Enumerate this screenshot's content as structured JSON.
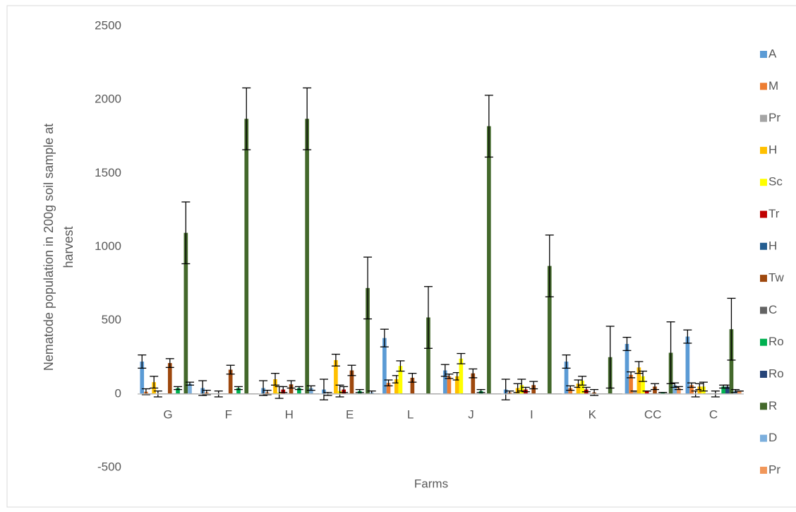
{
  "chart_data": {
    "type": "bar",
    "ylabel": [
      "Nematode population in 200g soil sample at",
      "harvest"
    ],
    "xlabel": "Farms",
    "categories": [
      "G",
      "F",
      "H",
      "E",
      "L",
      "J",
      "I",
      "K",
      "CC",
      "C"
    ],
    "ylim": [
      -500,
      2500
    ],
    "yticks": [
      -500,
      0,
      500,
      1000,
      1500,
      2000,
      2500
    ],
    "grid": false,
    "series": [
      {
        "name": "A",
        "color": "#5b9bd5",
        "values": [
          220,
          40,
          40,
          30,
          380,
          160,
          30,
          220,
          340,
          390
        ],
        "errors": [
          45,
          50,
          50,
          70,
          60,
          40,
          70,
          45,
          45,
          45
        ]
      },
      {
        "name": "M",
        "color": "#ed7d31",
        "values": [
          15,
          10,
          10,
          0,
          75,
          120,
          10,
          40,
          130,
          60
        ],
        "errors": [
          20,
          15,
          15,
          10,
          20,
          15,
          10,
          15,
          20,
          15
        ]
      },
      {
        "name": "Pr",
        "color": "#a5a5a5",
        "values": [
          0,
          0,
          0,
          0,
          0,
          0,
          0,
          0,
          20,
          0
        ],
        "errors": [
          0,
          0,
          0,
          0,
          0,
          0,
          0,
          0,
          0,
          20
        ]
      },
      {
        "name": "H",
        "color": "#ffc000",
        "values": [
          80,
          0,
          100,
          230,
          100,
          120,
          40,
          70,
          180,
          50
        ],
        "errors": [
          40,
          0,
          40,
          40,
          25,
          25,
          30,
          25,
          40,
          20
        ]
      },
      {
        "name": "Sc",
        "color": "#ffff00",
        "values": [
          0,
          0,
          10,
          20,
          190,
          240,
          60,
          90,
          120,
          50
        ],
        "errors": [
          20,
          20,
          40,
          40,
          35,
          35,
          40,
          30,
          35,
          30
        ]
      },
      {
        "name": "Tr",
        "color": "#c00000",
        "values": [
          0,
          0,
          30,
          30,
          0,
          0,
          30,
          30,
          20,
          0
        ],
        "errors": [
          0,
          0,
          20,
          20,
          0,
          0,
          15,
          15,
          0,
          0
        ]
      },
      {
        "name": "H",
        "color": "#255e91",
        "values": [
          0,
          0,
          0,
          0,
          0,
          0,
          0,
          0,
          0,
          0
        ],
        "errors": [
          0,
          0,
          0,
          0,
          0,
          0,
          0,
          0,
          0,
          0
        ]
      },
      {
        "name": "Tw",
        "color": "#9e480e",
        "values": [
          210,
          165,
          65,
          160,
          110,
          140,
          60,
          10,
          50,
          0
        ],
        "errors": [
          30,
          30,
          25,
          35,
          30,
          30,
          25,
          20,
          20,
          20
        ]
      },
      {
        "name": "C",
        "color": "#636363",
        "values": [
          0,
          0,
          0,
          0,
          0,
          0,
          0,
          0,
          0,
          0
        ],
        "errors": [
          0,
          0,
          0,
          0,
          0,
          0,
          0,
          0,
          0,
          0
        ]
      },
      {
        "name": "Ro",
        "color": "#00b050",
        "values": [
          40,
          40,
          40,
          20,
          0,
          20,
          0,
          0,
          10,
          50
        ],
        "errors": [
          10,
          10,
          10,
          10,
          0,
          10,
          0,
          0,
          0,
          10
        ]
      },
      {
        "name": "Ro",
        "color": "#264478",
        "values": [
          0,
          0,
          0,
          0,
          0,
          0,
          0,
          0,
          0,
          50
        ],
        "errors": [
          0,
          0,
          0,
          0,
          0,
          0,
          0,
          0,
          0,
          10
        ]
      },
      {
        "name": "R",
        "color": "#43682b",
        "values": [
          1095,
          1870,
          1870,
          720,
          520,
          1820,
          870,
          250,
          280,
          440
        ],
        "errors": [
          210,
          210,
          210,
          210,
          210,
          210,
          210,
          210,
          210,
          210
        ]
      },
      {
        "name": "D",
        "color": "#7cafdd",
        "values": [
          70,
          0,
          40,
          10,
          0,
          0,
          0,
          0,
          60,
          20
        ],
        "errors": [
          10,
          0,
          15,
          10,
          0,
          0,
          0,
          0,
          15,
          10
        ]
      },
      {
        "name": "Pr",
        "color": "#f1975a",
        "values": [
          0,
          0,
          0,
          0,
          0,
          0,
          0,
          0,
          40,
          20
        ],
        "errors": [
          0,
          0,
          0,
          0,
          0,
          0,
          0,
          0,
          10,
          0
        ]
      }
    ]
  }
}
